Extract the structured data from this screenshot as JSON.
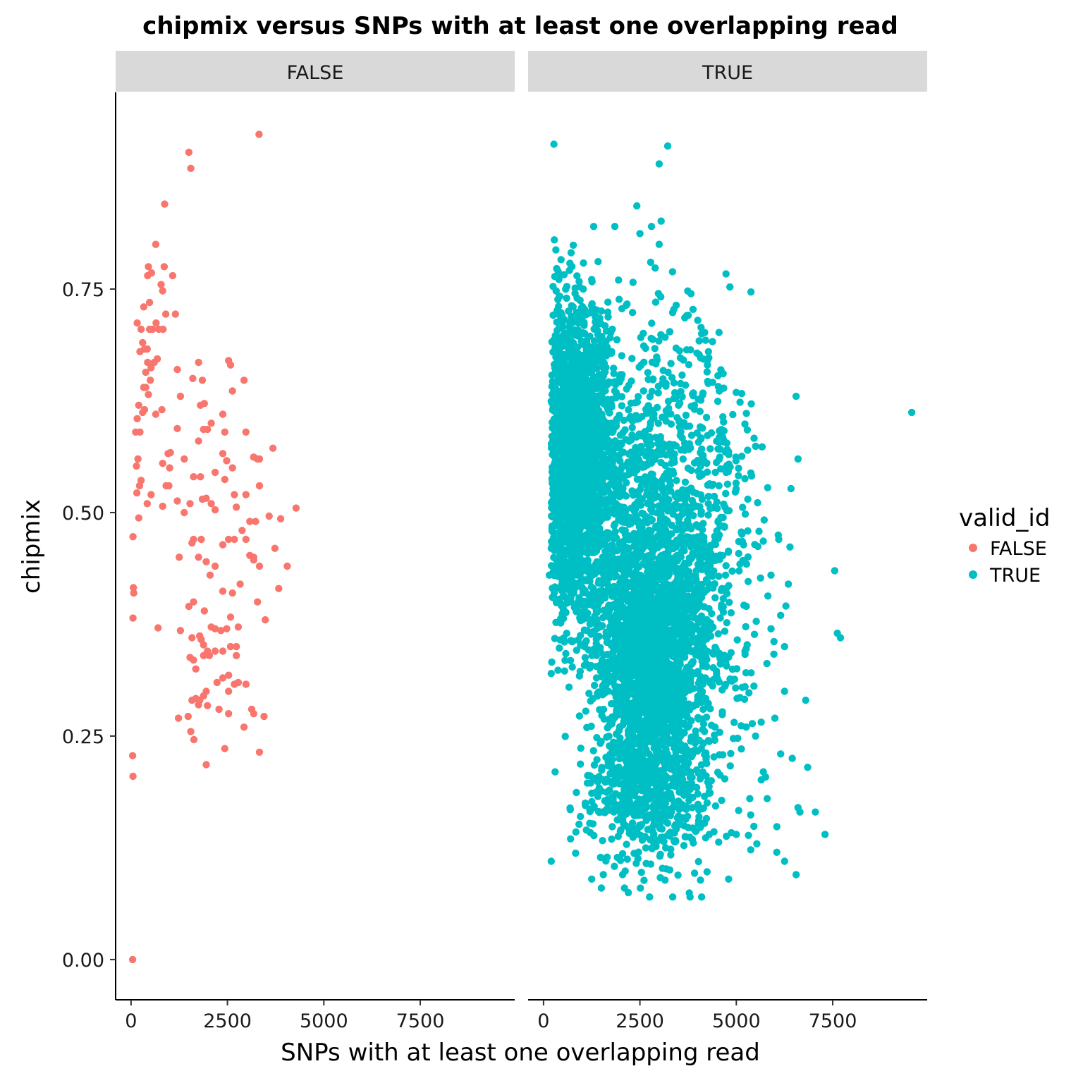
{
  "chart_data": {
    "type": "scatter",
    "title": "chipmix versus SNPs with at least one overlapping read",
    "xlabel": "SNPs with at least one overlapping read",
    "ylabel": "chipmix",
    "xlim": [
      -400,
      9950
    ],
    "ylim": [
      -0.045,
      0.97
    ],
    "x_ticks": [
      0,
      2500,
      5000,
      7500
    ],
    "x_tick_labels": [
      "0",
      "2500",
      "5000",
      "7500"
    ],
    "y_ticks": [
      0,
      0.25,
      0.5,
      0.75
    ],
    "y_tick_labels": [
      "0.00",
      "0.25",
      "0.50",
      "0.75"
    ],
    "grid": false,
    "legend": {
      "title": "valid_id",
      "placement": "right",
      "entries": [
        {
          "label": "FALSE",
          "color": "#F8766D"
        },
        {
          "label": "TRUE",
          "color": "#00BFC4"
        }
      ]
    },
    "facets": [
      {
        "label": "FALSE",
        "color": "#F8766D",
        "points": [
          [
            40,
            0.0
          ],
          [
            50,
            0.205
          ],
          [
            40,
            0.228
          ],
          [
            50,
            0.382
          ],
          [
            70,
            0.41
          ],
          [
            60,
            0.416
          ],
          [
            50,
            0.473
          ],
          [
            200,
            0.494
          ],
          [
            150,
            0.522
          ],
          [
            220,
            0.53
          ],
          [
            260,
            0.536
          ],
          [
            180,
            0.56
          ],
          [
            140,
            0.552
          ],
          [
            120,
            0.59
          ],
          [
            230,
            0.59
          ],
          [
            160,
            0.605
          ],
          [
            300,
            0.612
          ],
          [
            350,
            0.615
          ],
          [
            200,
            0.62
          ],
          [
            330,
            0.64
          ],
          [
            380,
            0.64
          ],
          [
            450,
            0.632
          ],
          [
            500,
            0.648
          ],
          [
            380,
            0.657
          ],
          [
            430,
            0.668
          ],
          [
            520,
            0.662
          ],
          [
            600,
            0.668
          ],
          [
            680,
            0.672
          ],
          [
            230,
            0.68
          ],
          [
            300,
            0.69
          ],
          [
            350,
            0.683
          ],
          [
            420,
            0.683
          ],
          [
            480,
            0.705
          ],
          [
            160,
            0.712
          ],
          [
            260,
            0.705
          ],
          [
            330,
            0.73
          ],
          [
            480,
            0.735
          ],
          [
            560,
            0.705
          ],
          [
            650,
            0.712
          ],
          [
            720,
            0.705
          ],
          [
            830,
            0.705
          ],
          [
            900,
            0.722
          ],
          [
            820,
            0.748
          ],
          [
            780,
            0.755
          ],
          [
            430,
            0.765
          ],
          [
            530,
            0.768
          ],
          [
            1150,
            0.722
          ],
          [
            1080,
            0.765
          ],
          [
            860,
            0.775
          ],
          [
            450,
            0.775
          ],
          [
            640,
            0.8
          ],
          [
            870,
            0.845
          ],
          [
            1500,
            0.903
          ],
          [
            1550,
            0.885
          ],
          [
            3320,
            0.923
          ],
          [
            420,
            0.51
          ],
          [
            520,
            0.52
          ],
          [
            640,
            0.61
          ],
          [
            800,
            0.615
          ],
          [
            910,
            0.53
          ],
          [
            960,
            0.566
          ],
          [
            1020,
            0.567
          ],
          [
            820,
            0.555
          ],
          [
            1000,
            0.55
          ],
          [
            820,
            0.507
          ],
          [
            980,
            0.53
          ],
          [
            1200,
            0.66
          ],
          [
            1280,
            0.63
          ],
          [
            1200,
            0.594
          ],
          [
            1380,
            0.56
          ],
          [
            1200,
            0.513
          ],
          [
            1380,
            0.5
          ],
          [
            1600,
            0.65
          ],
          [
            1750,
            0.668
          ],
          [
            1850,
            0.648
          ],
          [
            1800,
            0.62
          ],
          [
            1900,
            0.622
          ],
          [
            1880,
            0.593
          ],
          [
            1980,
            0.593
          ],
          [
            2080,
            0.6
          ],
          [
            2380,
            0.61
          ],
          [
            2430,
            0.59
          ],
          [
            2530,
            0.67
          ],
          [
            2580,
            0.665
          ],
          [
            2630,
            0.636
          ],
          [
            2930,
            0.648
          ],
          [
            1750,
            0.58
          ],
          [
            1800,
            0.54
          ],
          [
            1620,
            0.54
          ],
          [
            2180,
            0.545
          ],
          [
            2180,
            0.503
          ],
          [
            2380,
            0.566
          ],
          [
            2430,
            0.537
          ],
          [
            2480,
            0.558
          ],
          [
            2630,
            0.55
          ],
          [
            2730,
            0.506
          ],
          [
            2680,
            0.52
          ],
          [
            2880,
            0.48
          ],
          [
            2980,
            0.59
          ],
          [
            3180,
            0.562
          ],
          [
            3280,
            0.56
          ],
          [
            3330,
            0.56
          ],
          [
            3330,
            0.53
          ],
          [
            2980,
            0.52
          ],
          [
            3080,
            0.49
          ],
          [
            3230,
            0.49
          ],
          [
            3680,
            0.572
          ],
          [
            3580,
            0.496
          ],
          [
            3880,
            0.493
          ],
          [
            4280,
            0.505
          ],
          [
            1850,
            0.515
          ],
          [
            1950,
            0.516
          ],
          [
            2080,
            0.51
          ],
          [
            1530,
            0.51
          ],
          [
            1620,
            0.47
          ],
          [
            1580,
            0.466
          ],
          [
            1820,
            0.47
          ],
          [
            1750,
            0.45
          ],
          [
            1950,
            0.445
          ],
          [
            2050,
            0.43
          ],
          [
            2180,
            0.44
          ],
          [
            2380,
            0.464
          ],
          [
            2530,
            0.47
          ],
          [
            2680,
            0.47
          ],
          [
            2980,
            0.47
          ],
          [
            2380,
            0.412
          ],
          [
            2630,
            0.41
          ],
          [
            2830,
            0.42
          ],
          [
            3080,
            0.452
          ],
          [
            3180,
            0.45
          ],
          [
            3330,
            0.44
          ],
          [
            3180,
            0.447
          ],
          [
            3730,
            0.46
          ],
          [
            4050,
            0.44
          ],
          [
            3830,
            0.415
          ],
          [
            3280,
            0.4
          ],
          [
            3480,
            0.38
          ],
          [
            1250,
            0.45
          ],
          [
            700,
            0.371
          ],
          [
            1280,
            0.368
          ],
          [
            1500,
            0.395
          ],
          [
            1620,
            0.4
          ],
          [
            1900,
            0.39
          ],
          [
            1820,
            0.358
          ],
          [
            1880,
            0.352
          ],
          [
            1980,
            0.345
          ],
          [
            2080,
            0.372
          ],
          [
            2180,
            0.37
          ],
          [
            2330,
            0.368
          ],
          [
            2480,
            0.37
          ],
          [
            2580,
            0.383
          ],
          [
            2780,
            0.372
          ],
          [
            1580,
            0.36
          ],
          [
            1780,
            0.362
          ],
          [
            1530,
            0.338
          ],
          [
            1620,
            0.335
          ],
          [
            1680,
            0.325
          ],
          [
            1880,
            0.34
          ],
          [
            2030,
            0.34
          ],
          [
            2180,
            0.345
          ],
          [
            2380,
            0.345
          ],
          [
            2580,
            0.35
          ],
          [
            2730,
            0.35
          ],
          [
            2730,
            0.34
          ],
          [
            2780,
            0.31
          ],
          [
            2980,
            0.308
          ],
          [
            2230,
            0.31
          ],
          [
            2380,
            0.315
          ],
          [
            2530,
            0.318
          ],
          [
            2680,
            0.308
          ],
          [
            1950,
            0.3
          ],
          [
            2530,
            0.3
          ],
          [
            1580,
            0.29
          ],
          [
            1680,
            0.292
          ],
          [
            1780,
            0.29
          ],
          [
            1880,
            0.295
          ],
          [
            1750,
            0.285
          ],
          [
            1980,
            0.284
          ],
          [
            1480,
            0.272
          ],
          [
            1230,
            0.27
          ],
          [
            2280,
            0.28
          ],
          [
            2530,
            0.275
          ],
          [
            3130,
            0.28
          ],
          [
            3180,
            0.275
          ],
          [
            3450,
            0.272
          ],
          [
            2930,
            0.26
          ],
          [
            1550,
            0.255
          ],
          [
            1630,
            0.246
          ],
          [
            2430,
            0.236
          ],
          [
            3330,
            0.232
          ],
          [
            1950,
            0.218
          ]
        ]
      },
      {
        "label": "TRUE",
        "color": "#00BFC4",
        "outliers": [
          [
            270,
            0.912
          ],
          [
            3220,
            0.91
          ],
          [
            3000,
            0.89
          ],
          [
            2420,
            0.843
          ],
          [
            3050,
            0.826
          ],
          [
            1850,
            0.82
          ],
          [
            2800,
            0.82
          ],
          [
            2500,
            0.812
          ],
          [
            1300,
            0.82
          ],
          [
            280,
            0.805
          ],
          [
            2980,
            0.745
          ],
          [
            9550,
            0.612
          ],
          [
            7550,
            0.435
          ],
          [
            7700,
            0.36
          ],
          [
            7620,
            0.365
          ],
          [
            7300,
            0.14
          ],
          [
            6550,
            0.63
          ],
          [
            6600,
            0.56
          ],
          [
            6350,
            0.42
          ],
          [
            6800,
            0.29
          ],
          [
            6850,
            0.215
          ],
          [
            6600,
            0.17
          ],
          [
            6650,
            0.165
          ],
          [
            7050,
            0.165
          ],
          [
            6450,
            0.225
          ],
          [
            6250,
            0.3
          ],
          [
            6000,
            0.27
          ],
          [
            5900,
            0.43
          ],
          [
            5700,
            0.468
          ],
          [
            6100,
            0.47
          ],
          [
            5900,
            0.37
          ],
          [
            6150,
            0.385
          ],
          [
            6250,
            0.35
          ],
          [
            6150,
            0.23
          ],
          [
            5800,
            0.18
          ],
          [
            5350,
            0.18
          ],
          [
            5500,
            0.25
          ],
          [
            5700,
            0.21
          ],
          [
            6050,
            0.12
          ],
          [
            6250,
            0.11
          ],
          [
            6550,
            0.095
          ],
          [
            4300,
            0.14
          ],
          [
            4100,
            0.07
          ],
          [
            3800,
            0.07
          ],
          [
            2750,
            0.07
          ],
          [
            3350,
            0.07
          ],
          [
            4000,
            0.715
          ],
          [
            4100,
            0.7
          ],
          [
            200,
            0.32
          ],
          [
            150,
            0.43
          ],
          [
            2100,
            0.08
          ],
          [
            2050,
            0.095
          ],
          [
            1500,
            0.08
          ],
          [
            1250,
            0.09
          ],
          [
            200,
            0.11
          ],
          [
            300,
            0.21
          ],
          [
            700,
            0.135
          ],
          [
            1300,
            0.17
          ],
          [
            4350,
            0.2
          ],
          [
            4800,
            0.09
          ],
          [
            5000,
            0.14
          ],
          [
            3350,
            0.17
          ],
          [
            3000,
            0.8
          ]
        ],
        "clusters": [
          {
            "cx": 900,
            "cy": 0.56,
            "sx": 450,
            "sy": 0.085,
            "n": 2200,
            "xmin": 200
          },
          {
            "cx": 2750,
            "cy": 0.34,
            "sx": 700,
            "sy": 0.095,
            "n": 2600,
            "xmin": 200
          },
          {
            "cx": 4200,
            "cy": 0.42,
            "sx": 800,
            "sy": 0.12,
            "n": 450,
            "xmin": 200
          },
          {
            "cx": 3000,
            "cy": 0.6,
            "sx": 900,
            "sy": 0.07,
            "n": 350,
            "xmin": 200
          },
          {
            "cx": 2800,
            "cy": 0.17,
            "sx": 900,
            "sy": 0.03,
            "n": 260,
            "xmin": 200
          }
        ]
      }
    ]
  }
}
